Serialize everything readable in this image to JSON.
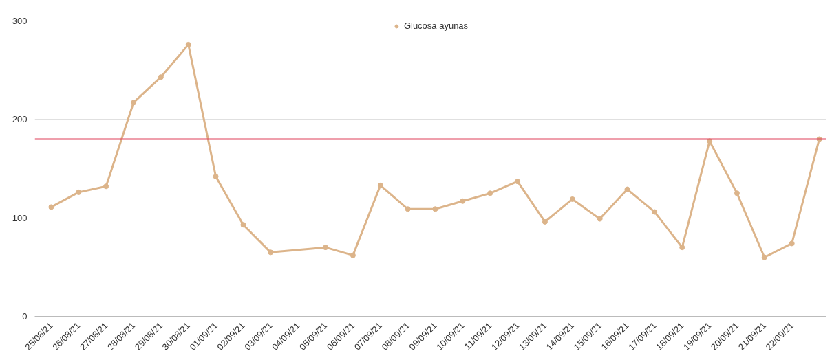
{
  "chart_data": {
    "type": "line",
    "categories": [
      "25/08/21",
      "26/08/21",
      "27/08/21",
      "28/08/21",
      "29/08/21",
      "30/08/21",
      "01/09/21",
      "02/09/21",
      "03/09/21",
      "04/09/21",
      "05/09/21",
      "06/09/21",
      "07/09/21",
      "08/09/21",
      "09/09/21",
      "10/09/21",
      "11/09/21",
      "12/09/21",
      "13/09/21",
      "14/09/21",
      "15/09/21",
      "16/09/21",
      "17/09/21",
      "18/09/21",
      "19/09/21",
      "20/09/21",
      "21/09/21",
      "22/09/21",
      null
    ],
    "series": [
      {
        "name": "Glucosa ayunas",
        "color": "#dcb48a",
        "values": [
          111,
          126,
          132,
          217,
          243,
          276,
          142,
          93,
          65,
          null,
          70,
          62,
          133,
          109,
          109,
          117,
          125,
          137,
          96,
          119,
          99,
          129,
          106,
          70,
          178,
          125,
          60,
          74,
          180
        ]
      }
    ],
    "ylim": [
      0,
      300
    ],
    "yticks": [
      0,
      100,
      200,
      300
    ],
    "grid": "y",
    "legend": "top",
    "marker": "circle",
    "line_style": "solid",
    "ref_lines": [
      {
        "axis": "y",
        "value": 180,
        "color": "#e0405a"
      }
    ]
  }
}
